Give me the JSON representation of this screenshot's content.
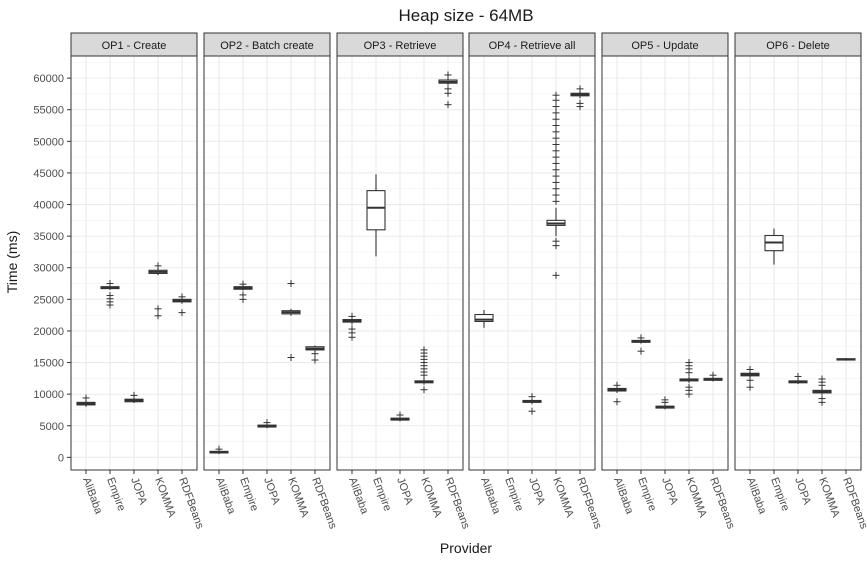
{
  "chart_data": {
    "type": "boxplot",
    "title": "Heap size - 64MB",
    "xlabel": "Provider",
    "ylabel": "Time (ms)",
    "ylim": [
      -2000,
      63500
    ],
    "yticks": [
      0,
      5000,
      10000,
      15000,
      20000,
      25000,
      30000,
      35000,
      40000,
      45000,
      50000,
      55000,
      60000
    ],
    "categories": [
      "AliBaba",
      "Empire",
      "JOPA",
      "KOMMA",
      "RDFBeans"
    ],
    "grid": true,
    "panels": [
      {
        "label": "OP1 - Create",
        "boxes": [
          {
            "q1": 8300,
            "median": 8500,
            "q3": 8700,
            "wlo": 8000,
            "whi": 9000,
            "outliers": [
              9400
            ]
          },
          {
            "q1": 26700,
            "median": 26850,
            "q3": 27000,
            "wlo": 26500,
            "whi": 27200,
            "outliers": [
              24100,
              24600,
              25100,
              25600,
              27500
            ]
          },
          {
            "q1": 8800,
            "median": 9000,
            "q3": 9200,
            "wlo": 8600,
            "whi": 9400,
            "outliers": [
              9800
            ]
          },
          {
            "q1": 29100,
            "median": 29350,
            "q3": 29600,
            "wlo": 28800,
            "whi": 30000,
            "outliers": [
              22400,
              23500,
              30300
            ]
          },
          {
            "q1": 24600,
            "median": 24800,
            "q3": 25000,
            "wlo": 24300,
            "whi": 25200,
            "outliers": [
              22900,
              25400
            ]
          }
        ]
      },
      {
        "label": "OP2 - Batch create",
        "boxes": [
          {
            "q1": 700,
            "median": 850,
            "q3": 950,
            "wlo": 500,
            "whi": 1100,
            "outliers": [
              1300
            ]
          },
          {
            "q1": 26600,
            "median": 26800,
            "q3": 27000,
            "wlo": 26400,
            "whi": 27200,
            "outliers": [
              25000,
              25700,
              27400
            ]
          },
          {
            "q1": 4800,
            "median": 4950,
            "q3": 5100,
            "wlo": 4600,
            "whi": 5300,
            "outliers": [
              5500
            ]
          },
          {
            "q1": 22700,
            "median": 22950,
            "q3": 23200,
            "wlo": 22400,
            "whi": 23500,
            "outliers": [
              15800,
              27500
            ]
          },
          {
            "q1": 17000,
            "median": 17200,
            "q3": 17500,
            "wlo": 16700,
            "whi": 17700,
            "outliers": [
              15400,
              16400
            ]
          }
        ]
      },
      {
        "label": "OP3 - Retrieve",
        "boxes": [
          {
            "q1": 21400,
            "median": 21600,
            "q3": 21800,
            "wlo": 21000,
            "whi": 22000,
            "outliers": [
              19000,
              19700,
              20300,
              22300
            ]
          },
          {
            "q1": 36000,
            "median": 39500,
            "q3": 42200,
            "wlo": 31800,
            "whi": 44800,
            "outliers": []
          },
          {
            "q1": 5900,
            "median": 6050,
            "q3": 6200,
            "wlo": 5700,
            "whi": 6400,
            "outliers": [
              6700
            ]
          },
          {
            "q1": 11800,
            "median": 11950,
            "q3": 12100,
            "wlo": 11500,
            "whi": 12500,
            "outliers": [
              10700,
              13000,
              13500,
              14000,
              14500,
              15000,
              15500,
              16000,
              16500,
              17000
            ]
          },
          {
            "q1": 59200,
            "median": 59400,
            "q3": 59700,
            "wlo": 58900,
            "whi": 60000,
            "outliers": [
              55800,
              57600,
              58300,
              60500
            ]
          }
        ]
      },
      {
        "label": "OP4 - Retrieve all",
        "boxes": [
          {
            "q1": 21500,
            "median": 21800,
            "q3": 22600,
            "wlo": 20500,
            "whi": 23300,
            "outliers": []
          },
          null,
          {
            "q1": 8700,
            "median": 8850,
            "q3": 9000,
            "wlo": 8400,
            "whi": 9200,
            "outliers": [
              7300,
              9600
            ]
          },
          {
            "q1": 36700,
            "median": 37000,
            "q3": 37500,
            "wlo": 35000,
            "whi": 39500,
            "outliers": [
              28800,
              33500,
              34200,
              40500,
              41500,
              42500,
              43500,
              44500,
              45500,
              46500,
              47500,
              48500,
              49500,
              50500,
              51500,
              52500,
              53500,
              54500,
              55500,
              56500,
              57300
            ]
          },
          {
            "q1": 57200,
            "median": 57400,
            "q3": 57600,
            "wlo": 56800,
            "whi": 57900,
            "outliers": [
              55500,
              56000,
              58300
            ]
          }
        ]
      },
      {
        "label": "OP5 - Update",
        "boxes": [
          {
            "q1": 10500,
            "median": 10700,
            "q3": 10900,
            "wlo": 10200,
            "whi": 11100,
            "outliers": [
              8800,
              11400
            ]
          },
          {
            "q1": 18200,
            "median": 18400,
            "q3": 18500,
            "wlo": 18000,
            "whi": 18700,
            "outliers": [
              16800,
              18900
            ]
          },
          {
            "q1": 7800,
            "median": 7950,
            "q3": 8100,
            "wlo": 7600,
            "whi": 8300,
            "outliers": [
              8700,
              9100
            ]
          },
          {
            "q1": 12100,
            "median": 12250,
            "q3": 12400,
            "wlo": 11800,
            "whi": 12800,
            "outliers": [
              10000,
              10600,
              11100,
              13400,
              14000,
              14500,
              15000
            ]
          },
          {
            "q1": 12200,
            "median": 12300,
            "q3": 12500,
            "wlo": 12000,
            "whi": 12700,
            "outliers": [
              13000
            ]
          }
        ]
      },
      {
        "label": "OP6 - Delete",
        "boxes": [
          {
            "q1": 12900,
            "median": 13100,
            "q3": 13300,
            "wlo": 12600,
            "whi": 13500,
            "outliers": [
              11100,
              12200,
              13900
            ]
          },
          {
            "q1": 32700,
            "median": 34000,
            "q3": 35100,
            "wlo": 30500,
            "whi": 36200,
            "outliers": []
          },
          {
            "q1": 11800,
            "median": 11950,
            "q3": 12100,
            "wlo": 11600,
            "whi": 12300,
            "outliers": [
              12800
            ]
          },
          {
            "q1": 10200,
            "median": 10400,
            "q3": 10600,
            "wlo": 9900,
            "whi": 10900,
            "outliers": [
              8700,
              9300,
              11400,
              11900,
              12400
            ]
          },
          {
            "q1": 15400,
            "median": 15500,
            "q3": 15600,
            "wlo": 15300,
            "whi": 15700,
            "outliers": []
          }
        ]
      }
    ]
  }
}
